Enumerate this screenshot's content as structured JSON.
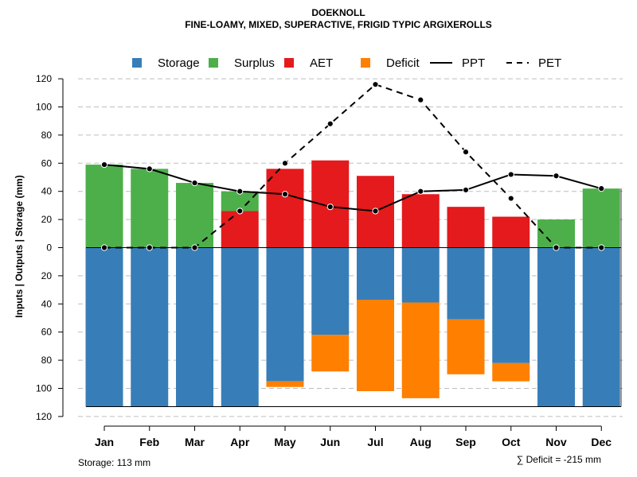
{
  "chart_data": {
    "type": "bar",
    "title": "DOEKNOLL",
    "subtitle": "FINE-LOAMY, MIXED, SUPERACTIVE, FRIGID TYPIC ARGIXEROLLS",
    "ylabel": "Inputs | Outputs | Storage     (mm)",
    "categories": [
      "Jan",
      "Feb",
      "Mar",
      "Apr",
      "May",
      "Jun",
      "Jul",
      "Aug",
      "Sep",
      "Oct",
      "Nov",
      "Dec"
    ],
    "ylim": [
      -120,
      120
    ],
    "y_ticks": [
      120,
      100,
      80,
      60,
      40,
      20,
      0,
      -20,
      -40,
      -60,
      -80,
      -100,
      -120
    ],
    "y_tick_labels": [
      "120",
      "100",
      "80",
      "60",
      "40",
      "20",
      "0",
      "20",
      "40",
      "60",
      "80",
      "100",
      "120"
    ],
    "grid": true,
    "legend_position": "top",
    "legend": [
      {
        "key": "storage",
        "label": "Storage",
        "type": "square",
        "color": "#377EB8"
      },
      {
        "key": "surplus",
        "label": "Surplus",
        "type": "square",
        "color": "#4DAF4A"
      },
      {
        "key": "aet",
        "label": "AET",
        "type": "square",
        "color": "#E41A1C"
      },
      {
        "key": "deficit",
        "label": "Deficit",
        "type": "square",
        "color": "#FF7F00"
      },
      {
        "key": "ppt",
        "label": "PPT",
        "type": "solid-line",
        "color": "#000000"
      },
      {
        "key": "pet",
        "label": "PET",
        "type": "dashed-line",
        "color": "#000000"
      }
    ],
    "series": {
      "storage": [
        113,
        113,
        113,
        113,
        95,
        62,
        37,
        39,
        51,
        82,
        113,
        113
      ],
      "surplus": [
        59,
        56,
        46,
        14,
        0,
        0,
        0,
        0,
        0,
        0,
        20,
        42
      ],
      "aet": [
        0,
        0,
        0,
        26,
        56,
        62,
        51,
        38,
        29,
        22,
        0,
        0
      ],
      "deficit": [
        0,
        0,
        0,
        0,
        4,
        26,
        65,
        68,
        39,
        13,
        0,
        0
      ],
      "ppt": [
        59,
        56,
        46,
        40,
        38,
        29,
        26,
        40,
        41,
        52,
        51,
        42
      ],
      "pet": [
        0,
        0,
        0,
        26,
        60,
        88,
        116,
        105,
        68,
        35,
        0,
        0
      ]
    },
    "storage_capacity": 113,
    "storage_note": "Storage: 113 mm",
    "deficit_note": "∑ Deficit = -215 mm"
  }
}
